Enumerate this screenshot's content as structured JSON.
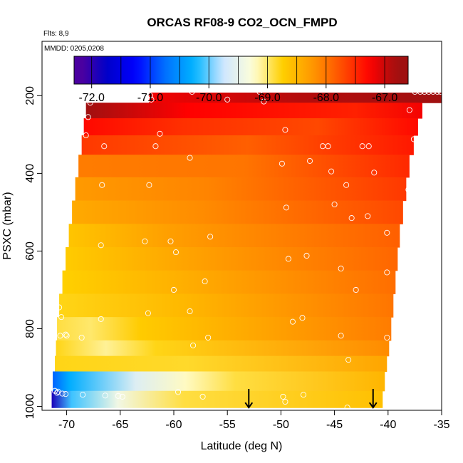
{
  "chart_data": {
    "type": "heatmap",
    "title": "ORCAS RF08-9 CO2_OCN_FMPD",
    "subtitle": "Flts: 8,9",
    "annotation": "MMDD: 0205,0208",
    "xlabel": "Latitude (deg N)",
    "ylabel": "PSXC (mbar)",
    "xlim": [
      -72.3,
      -35
    ],
    "ylim": [
      1010,
      60
    ],
    "y_reversed": true,
    "grid": false,
    "x_ticks": [
      -70,
      -65,
      -60,
      -55,
      -50,
      -45,
      -40,
      -35
    ],
    "x_tick_labels": [
      "-70",
      "-65",
      "-60",
      "-55",
      "-50",
      "-45",
      "-40",
      "-35"
    ],
    "y_ticks": [
      200,
      400,
      600,
      800,
      1000
    ],
    "y_tick_labels": [
      "200",
      "400",
      "600",
      "800",
      "1000"
    ],
    "colorbar": {
      "range": [
        -72.3,
        -66.6
      ],
      "ticks": [
        -72,
        -71,
        -70,
        -69,
        -68,
        -67
      ],
      "tick_labels": [
        "-72.0",
        "-71.0",
        "-70.0",
        "-69.0",
        "-68.0",
        "-67.0"
      ],
      "band_edges": [
        -72.3,
        -72.0,
        -71.5,
        -71.0,
        -70.5,
        -70.0,
        -69.5,
        -69.0,
        -68.5,
        -68.0,
        -67.5,
        -67.0,
        -66.6
      ],
      "colors": [
        "#4a00a0",
        "#0000c8",
        "#0000ff",
        "#0070ff",
        "#00b4ff",
        "#cfe6ff",
        "#ffffd8",
        "#ffd000",
        "#ff9a00",
        "#ff5000",
        "#ff0000",
        "#a01010"
      ]
    },
    "bands": [
      {
        "p_top": 192,
        "p_bot": 218,
        "lat_min": -62.3,
        "lat_max": -35.0,
        "stops": [
          [
            0,
            -67.2
          ],
          [
            0.5,
            -66.9
          ],
          [
            1,
            -66.8
          ]
        ]
      },
      {
        "p_top": 218,
        "p_bot": 258,
        "lat_min": -68.2,
        "lat_max": -36.8,
        "stops": [
          [
            0,
            -66.75
          ],
          [
            0.3,
            -67.25
          ],
          [
            0.8,
            -67.45
          ],
          [
            1,
            -67.2
          ]
        ]
      },
      {
        "p_top": 258,
        "p_bot": 302,
        "lat_min": -68.4,
        "lat_max": -37.2,
        "stops": [
          [
            0,
            -67.3
          ],
          [
            0.3,
            -67.55
          ],
          [
            0.7,
            -67.7
          ],
          [
            1,
            -67.3
          ]
        ]
      },
      {
        "p_top": 302,
        "p_bot": 352,
        "lat_min": -68.6,
        "lat_max": -37.6,
        "stops": [
          [
            0,
            -67.6
          ],
          [
            0.5,
            -67.85
          ],
          [
            1,
            -67.4
          ]
        ]
      },
      {
        "p_top": 352,
        "p_bot": 410,
        "lat_min": -68.9,
        "lat_max": -38.0,
        "stops": [
          [
            0,
            -68.05
          ],
          [
            0.5,
            -68.0
          ],
          [
            1,
            -67.5
          ]
        ]
      },
      {
        "p_top": 410,
        "p_bot": 470,
        "lat_min": -69.2,
        "lat_max": -38.3,
        "stops": [
          [
            0,
            -68.25
          ],
          [
            0.4,
            -68.1
          ],
          [
            1,
            -67.6
          ]
        ]
      },
      {
        "p_top": 470,
        "p_bot": 530,
        "lat_min": -69.5,
        "lat_max": -38.6,
        "stops": [
          [
            0,
            -68.4
          ],
          [
            0.4,
            -68.15
          ],
          [
            1,
            -67.7
          ]
        ]
      },
      {
        "p_top": 530,
        "p_bot": 590,
        "lat_min": -69.8,
        "lat_max": -38.9,
        "stops": [
          [
            0,
            -68.65
          ],
          [
            0.3,
            -68.3
          ],
          [
            1,
            -67.85
          ]
        ]
      },
      {
        "p_top": 590,
        "p_bot": 650,
        "lat_min": -70.1,
        "lat_max": -39.1,
        "stops": [
          [
            0,
            -68.7
          ],
          [
            0.35,
            -68.35
          ],
          [
            1,
            -67.9
          ]
        ]
      },
      {
        "p_top": 650,
        "p_bot": 710,
        "lat_min": -70.4,
        "lat_max": -39.3,
        "stops": [
          [
            0,
            -68.75
          ],
          [
            0.35,
            -68.45
          ],
          [
            1,
            -67.95
          ]
        ]
      },
      {
        "p_top": 710,
        "p_bot": 770,
        "lat_min": -70.7,
        "lat_max": -39.5,
        "stops": [
          [
            0,
            -68.8
          ],
          [
            0.35,
            -68.55
          ],
          [
            1,
            -68.0
          ]
        ]
      },
      {
        "p_top": 770,
        "p_bot": 830,
        "lat_min": -70.9,
        "lat_max": -39.7,
        "stops": [
          [
            0,
            -68.9
          ],
          [
            0.1,
            -69.0
          ],
          [
            0.25,
            -68.7
          ],
          [
            1,
            -68.05
          ]
        ]
      },
      {
        "p_top": 830,
        "p_bot": 870,
        "lat_min": -71.0,
        "lat_max": -39.9,
        "stops": [
          [
            0,
            -68.8
          ],
          [
            0.15,
            -69.1
          ],
          [
            0.3,
            -68.8
          ],
          [
            1,
            -68.15
          ]
        ]
      },
      {
        "p_top": 870,
        "p_bot": 910,
        "lat_min": -71.1,
        "lat_max": -40.1,
        "stops": [
          [
            0,
            -68.8
          ],
          [
            0.4,
            -68.85
          ],
          [
            1,
            -68.35
          ]
        ]
      },
      {
        "p_top": 910,
        "p_bot": 960,
        "lat_min": -71.3,
        "lat_max": -40.3,
        "stops": [
          [
            0,
            -70.8
          ],
          [
            0.05,
            -70.3
          ],
          [
            0.25,
            -69.6
          ],
          [
            0.4,
            -69.2
          ],
          [
            0.55,
            -68.9
          ],
          [
            1,
            -68.5
          ]
        ]
      },
      {
        "p_top": 960,
        "p_bot": 1003,
        "lat_min": -71.4,
        "lat_max": -40.5,
        "stops": [
          [
            0,
            -71.9
          ],
          [
            0.06,
            -70.1
          ],
          [
            0.2,
            -69.4
          ],
          [
            0.4,
            -68.9
          ],
          [
            1,
            -68.6
          ]
        ]
      }
    ],
    "points": [
      [
        -58.3,
        190
      ],
      [
        -52.0,
        190
      ],
      [
        -37.5,
        190
      ],
      [
        -37.0,
        190
      ],
      [
        -36.6,
        190
      ],
      [
        -36.2,
        190
      ],
      [
        -35.8,
        190
      ],
      [
        -35.4,
        190
      ],
      [
        -35.1,
        190
      ],
      [
        -62.2,
        200
      ],
      [
        -62.1,
        210
      ],
      [
        -55.0,
        210
      ],
      [
        -51.6,
        215
      ],
      [
        -67.8,
        218
      ],
      [
        -38.0,
        237
      ],
      [
        -68.0,
        255
      ],
      [
        -61.3,
        298
      ],
      [
        -49.6,
        288
      ],
      [
        -68.2,
        302
      ],
      [
        -37.6,
        312
      ],
      [
        -66.5,
        330
      ],
      [
        -61.7,
        330
      ],
      [
        -46.1,
        330
      ],
      [
        -45.6,
        330
      ],
      [
        -42.4,
        330
      ],
      [
        -41.8,
        330
      ],
      [
        -58.5,
        360
      ],
      [
        -47.3,
        368
      ],
      [
        -49.9,
        375
      ],
      [
        -70.0,
        378
      ],
      [
        -45.3,
        395
      ],
      [
        -41.3,
        398
      ],
      [
        -66.7,
        430
      ],
      [
        -62.3,
        430
      ],
      [
        -43.9,
        430
      ],
      [
        -38.1,
        442
      ],
      [
        -45.0,
        480
      ],
      [
        -49.5,
        488
      ],
      [
        -41.9,
        510
      ],
      [
        -43.4,
        515
      ],
      [
        -70.1,
        570
      ],
      [
        -70.4,
        575
      ],
      [
        -62.7,
        575
      ],
      [
        -60.3,
        575
      ],
      [
        -56.6,
        563
      ],
      [
        -40.1,
        553
      ],
      [
        -38.2,
        572
      ],
      [
        -66.8,
        585
      ],
      [
        -59.8,
        603
      ],
      [
        -47.6,
        612
      ],
      [
        -49.3,
        620
      ],
      [
        -44.4,
        645
      ],
      [
        -40.1,
        655
      ],
      [
        -57.1,
        678
      ],
      [
        -60.0,
        700
      ],
      [
        -43.0,
        700
      ],
      [
        -70.7,
        745
      ],
      [
        -58.5,
        755
      ],
      [
        -62.4,
        760
      ],
      [
        -66.8,
        775
      ],
      [
        -70.5,
        770
      ],
      [
        -48.0,
        772
      ],
      [
        -39.2,
        742
      ],
      [
        -48.9,
        782
      ],
      [
        -70.6,
        818
      ],
      [
        -70.1,
        815
      ],
      [
        -70.0,
        818
      ],
      [
        -68.6,
        823
      ],
      [
        -56.8,
        823
      ],
      [
        -44.4,
        818
      ],
      [
        -40.1,
        823
      ],
      [
        -58.2,
        843
      ],
      [
        -43.7,
        880
      ],
      [
        -71.1,
        960
      ],
      [
        -70.9,
        965
      ],
      [
        -70.8,
        962
      ],
      [
        -70.4,
        967
      ],
      [
        -70.1,
        968
      ],
      [
        -68.5,
        970
      ],
      [
        -66.4,
        972
      ],
      [
        -65.2,
        973
      ],
      [
        -64.8,
        975
      ],
      [
        -59.6,
        963
      ],
      [
        -57.3,
        975
      ],
      [
        -49.8,
        975
      ],
      [
        -49.6,
        988
      ],
      [
        -47.9,
        970
      ],
      [
        -43.8,
        1003
      ],
      [
        -39.9,
        1003
      ]
    ],
    "arrows": [
      {
        "lat": -53.0,
        "p_start": 955,
        "p_end": 1003
      },
      {
        "lat": -41.4,
        "p_start": 955,
        "p_end": 1003
      }
    ]
  }
}
